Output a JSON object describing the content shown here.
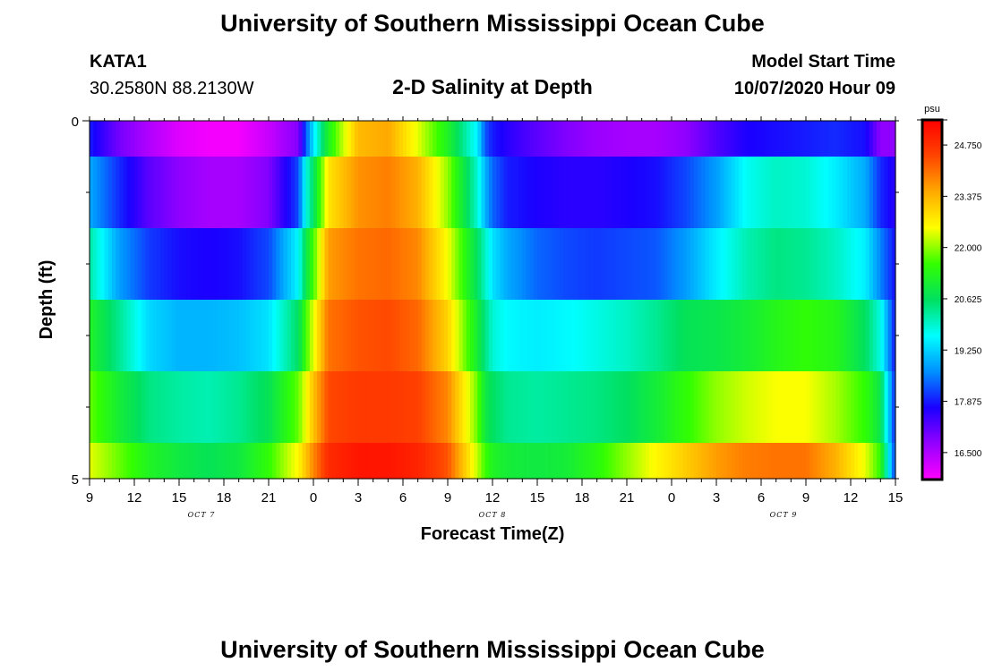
{
  "header": {
    "title": "University of Southern Mississippi Ocean Cube",
    "station": "KATA1",
    "coords": "30.2580N 88.2130W",
    "chart_title": "2-D Salinity at Depth",
    "model_label": "Model Start Time",
    "model_time": "10/07/2020 Hour 09"
  },
  "footer": {
    "title": "University of Southern Mississippi Ocean Cube"
  },
  "colors": {
    "colormap": [
      "#ff00ff",
      "#9400ff",
      "#1a00ff",
      "#0090ff",
      "#00ffff",
      "#00e060",
      "#33ff00",
      "#ffff00",
      "#ffaa00",
      "#ff4400",
      "#ff0000"
    ]
  },
  "chart_data": {
    "type": "heatmap",
    "title": "2-D Salinity at Depth",
    "xlabel": "Forecast Time(Z)",
    "ylabel": "Depth (ft)",
    "ylim": [
      0,
      5
    ],
    "y_ticks": [
      "0",
      "5"
    ],
    "x_tick_labels": [
      "9",
      "12",
      "15",
      "18",
      "21",
      "0",
      "3",
      "6",
      "9",
      "12",
      "15",
      "18",
      "21",
      "0",
      "3",
      "6",
      "9",
      "12",
      "15"
    ],
    "day_labels": [
      "OCT 7",
      "OCT 8",
      "OCT 9"
    ],
    "x_range_hours": [
      0,
      54
    ],
    "colorbar": {
      "unit": "psu",
      "range": [
        15.8,
        25.4
      ],
      "tick_labels": [
        "24.750",
        "23.375",
        "22.000",
        "20.625",
        "19.250",
        "17.875",
        "16.500"
      ],
      "tick_values": [
        24.75,
        23.375,
        22.0,
        20.625,
        19.25,
        17.875,
        16.5
      ]
    },
    "hours": [
      0,
      2,
      4,
      6,
      8,
      10,
      12,
      14,
      14.5,
      15,
      16,
      18,
      20,
      22,
      24,
      26,
      26.5,
      27,
      28,
      30,
      32,
      34,
      36,
      38,
      40,
      42,
      44,
      46,
      48,
      50,
      52,
      53,
      54
    ],
    "layers": [
      {
        "depth_range": "0-0.5",
        "values": [
          17.9,
          17.0,
          16.5,
          16.1,
          15.9,
          15.9,
          16.3,
          16.9,
          18.3,
          19.4,
          21.2,
          23.3,
          23.5,
          22.4,
          21.2,
          19.5,
          18.3,
          17.9,
          17.6,
          17.2,
          16.9,
          16.7,
          16.6,
          16.6,
          16.8,
          17.3,
          17.7,
          17.8,
          17.9,
          18.0,
          17.8,
          16.8,
          16.8
        ]
      },
      {
        "depth_range": "0.5-1.5",
        "values": [
          18.9,
          18.0,
          17.2,
          16.8,
          16.6,
          16.6,
          16.9,
          18.2,
          19.8,
          20.6,
          22.8,
          23.7,
          23.9,
          23.4,
          22.0,
          19.9,
          19.0,
          18.4,
          17.9,
          17.7,
          17.6,
          17.6,
          17.7,
          17.8,
          18.2,
          18.8,
          19.7,
          20.0,
          19.9,
          19.5,
          18.9,
          18.0,
          17.6
        ]
      },
      {
        "depth_range": "1.5-2.5",
        "values": [
          20.2,
          18.8,
          18.1,
          17.8,
          17.7,
          17.8,
          18.2,
          19.6,
          20.8,
          21.6,
          23.6,
          24.0,
          24.1,
          23.8,
          22.5,
          20.6,
          20.0,
          19.4,
          18.9,
          18.4,
          18.2,
          18.1,
          18.2,
          18.3,
          18.8,
          19.5,
          20.1,
          20.4,
          20.3,
          20.0,
          19.5,
          18.6,
          17.8
        ]
      },
      {
        "depth_range": "2.5-3.5",
        "values": [
          21.2,
          20.3,
          19.3,
          19.0,
          19.0,
          19.1,
          19.4,
          20.6,
          21.6,
          22.4,
          24.0,
          24.3,
          24.4,
          24.1,
          23.0,
          21.0,
          20.4,
          19.9,
          19.6,
          19.5,
          19.6,
          19.8,
          20.0,
          20.3,
          20.7,
          20.8,
          21.0,
          21.3,
          21.5,
          21.3,
          20.6,
          19.8,
          17.8
        ]
      },
      {
        "depth_range": "3.5-4.5",
        "values": [
          21.8,
          21.0,
          20.4,
          20.2,
          20.1,
          20.3,
          20.7,
          21.8,
          22.5,
          23.2,
          24.4,
          24.6,
          24.6,
          24.5,
          23.8,
          21.8,
          20.9,
          20.6,
          20.3,
          20.2,
          20.3,
          20.4,
          20.6,
          21.0,
          21.5,
          22.0,
          22.3,
          22.5,
          22.5,
          22.1,
          21.5,
          20.8,
          17.9
        ]
      },
      {
        "depth_range": "4.5-5",
        "values": [
          22.4,
          21.8,
          21.2,
          20.9,
          20.7,
          20.9,
          21.5,
          22.6,
          23.2,
          23.8,
          24.8,
          25.1,
          25.1,
          24.9,
          24.3,
          22.2,
          21.6,
          21.2,
          21.0,
          20.9,
          21.0,
          21.4,
          22.0,
          22.6,
          23.1,
          23.6,
          23.9,
          24.0,
          24.0,
          23.4,
          22.4,
          21.5,
          18.0
        ]
      }
    ]
  }
}
